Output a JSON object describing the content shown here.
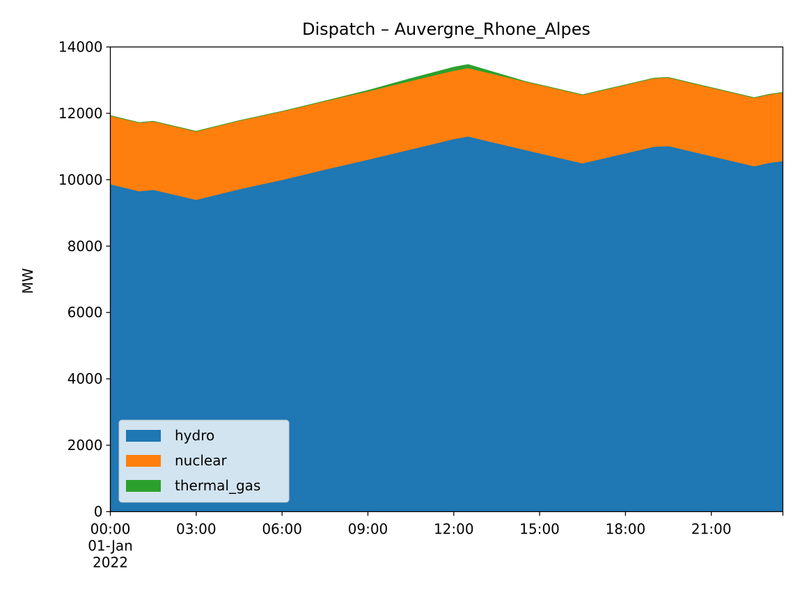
{
  "chart_data": {
    "type": "area",
    "stacked": true,
    "title": "Dispatch – Auvergne_Rhone_Alpes",
    "xlabel": "",
    "ylabel": "MW",
    "ylim": [
      0,
      14000
    ],
    "xlim": [
      "2022-01-01 00:00",
      "2022-01-01 23:30"
    ],
    "yticks": [
      0,
      2000,
      4000,
      6000,
      8000,
      10000,
      12000,
      14000
    ],
    "xticks": [
      {
        "time": "2022-01-01 00:00",
        "lines": [
          "00:00",
          "01-Jan",
          "2022"
        ]
      },
      {
        "time": "2022-01-01 03:00",
        "lines": [
          "03:00"
        ]
      },
      {
        "time": "2022-01-01 06:00",
        "lines": [
          "06:00"
        ]
      },
      {
        "time": "2022-01-01 09:00",
        "lines": [
          "09:00"
        ]
      },
      {
        "time": "2022-01-01 12:00",
        "lines": [
          "12:00"
        ]
      },
      {
        "time": "2022-01-01 15:00",
        "lines": [
          "15:00"
        ]
      },
      {
        "time": "2022-01-01 18:00",
        "lines": [
          "18:00"
        ]
      },
      {
        "time": "2022-01-01 21:00",
        "lines": [
          "21:00"
        ]
      }
    ],
    "x": [
      "2022-01-01 00:00",
      "2022-01-01 01:00",
      "2022-01-01 01:30",
      "2022-01-01 03:00",
      "2022-01-01 04:30",
      "2022-01-01 06:00",
      "2022-01-01 07:30",
      "2022-01-01 09:00",
      "2022-01-01 10:30",
      "2022-01-01 12:00",
      "2022-01-01 12:30",
      "2022-01-01 14:30",
      "2022-01-01 16:30",
      "2022-01-01 19:00",
      "2022-01-01 19:30",
      "2022-01-01 22:30",
      "2022-01-01 23:00",
      "2022-01-01 23:30"
    ],
    "series": [
      {
        "name": "hydro",
        "color": "#1f77b4",
        "values": [
          9870,
          9660,
          9700,
          9400,
          9720,
          10000,
          10310,
          10610,
          10920,
          11230,
          11310,
          10900,
          10500,
          11000,
          11020,
          10410,
          10510,
          10570
        ]
      },
      {
        "name": "nuclear",
        "color": "#ff7f0e",
        "values": [
          2060,
          2060,
          2060,
          2060,
          2060,
          2060,
          2060,
          2060,
          2060,
          2060,
          2060,
          2060,
          2060,
          2060,
          2060,
          2060,
          2060,
          2060
        ]
      },
      {
        "name": "thermal_gas",
        "color": "#2ca02c",
        "values": [
          0,
          0,
          0,
          0,
          0,
          0,
          0,
          20,
          70,
          100,
          100,
          0,
          0,
          0,
          0,
          0,
          0,
          0
        ]
      }
    ],
    "legend": {
      "placement": "lower-left"
    },
    "grid": false
  }
}
